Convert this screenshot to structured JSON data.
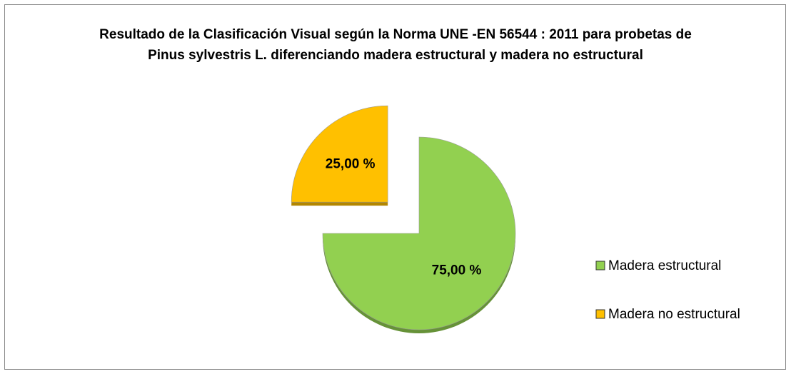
{
  "chart_data": {
    "type": "pie",
    "title": "Resultado de la Clasificación Visual según la Norma UNE -EN 56544 : 2011 para probetas de Pinus sylvestris L. diferenciando madera estructural y madera no estructural",
    "categories": [
      "Madera estructural",
      "Madera no estructural"
    ],
    "values": [
      75,
      25
    ],
    "value_labels": [
      "75,00 %",
      "25,00 %"
    ],
    "colors": [
      "#92d050",
      "#ffc000"
    ],
    "explode": [
      false,
      true
    ],
    "legend": "right"
  }
}
